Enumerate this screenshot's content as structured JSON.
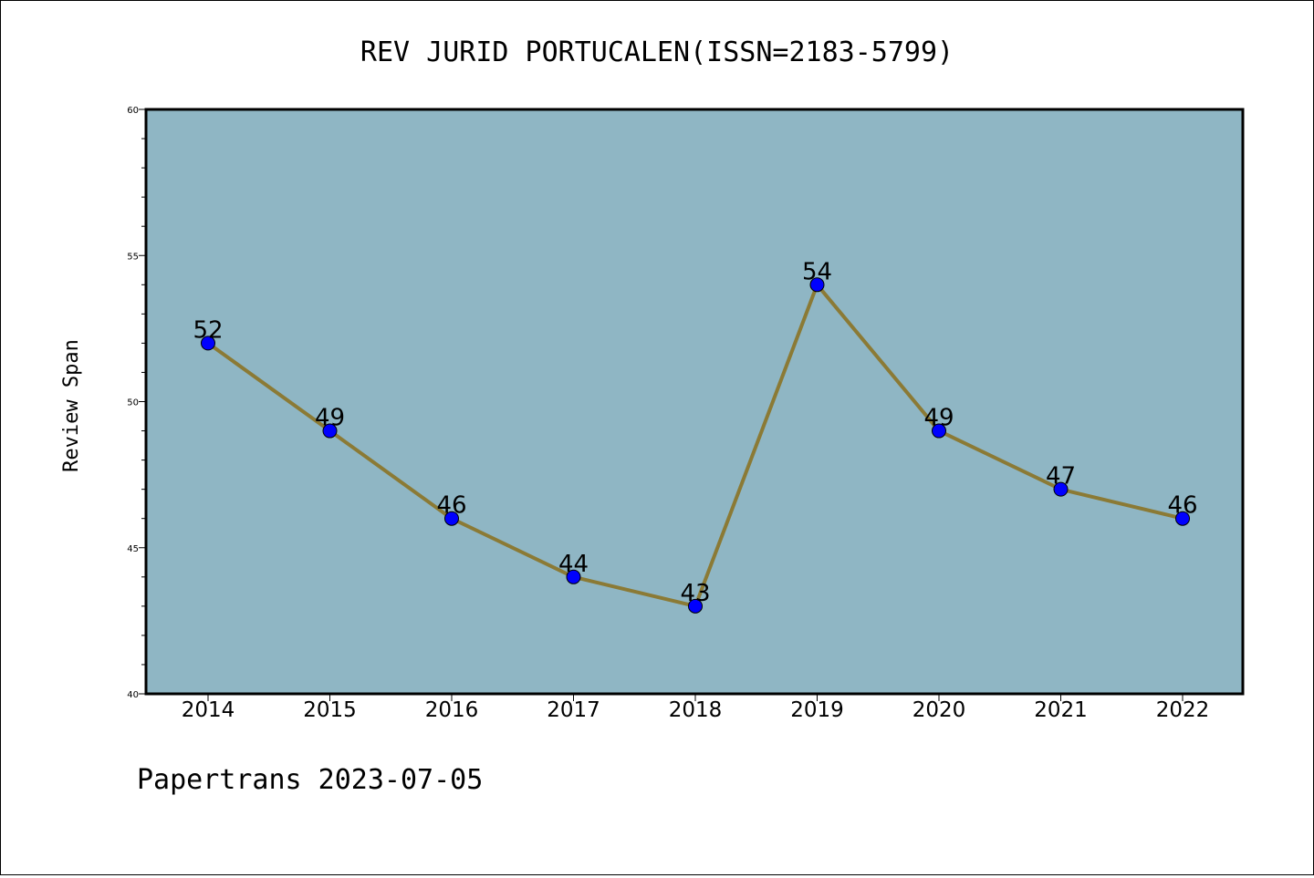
{
  "chart_data": {
    "type": "line",
    "title": "REV JURID PORTUCALEN(ISSN=2183-5799)",
    "xlabel": "",
    "ylabel": "Review Span",
    "categories": [
      "2014",
      "2015",
      "2016",
      "2017",
      "2018",
      "2019",
      "2020",
      "2021",
      "2022"
    ],
    "series": [
      {
        "values": [
          52,
          49,
          46,
          44,
          43,
          54,
          49,
          47,
          46
        ]
      }
    ],
    "ylim": [
      40,
      60
    ],
    "yticks": [
      "40",
      "45",
      "50",
      "55",
      "60"
    ],
    "grid": false,
    "legend": "none",
    "colors": {
      "plot_background": "#8fb6c4",
      "line": "#8b7a35",
      "marker": "#0000ff"
    }
  },
  "footer": "Papertrans 2023-07-05"
}
